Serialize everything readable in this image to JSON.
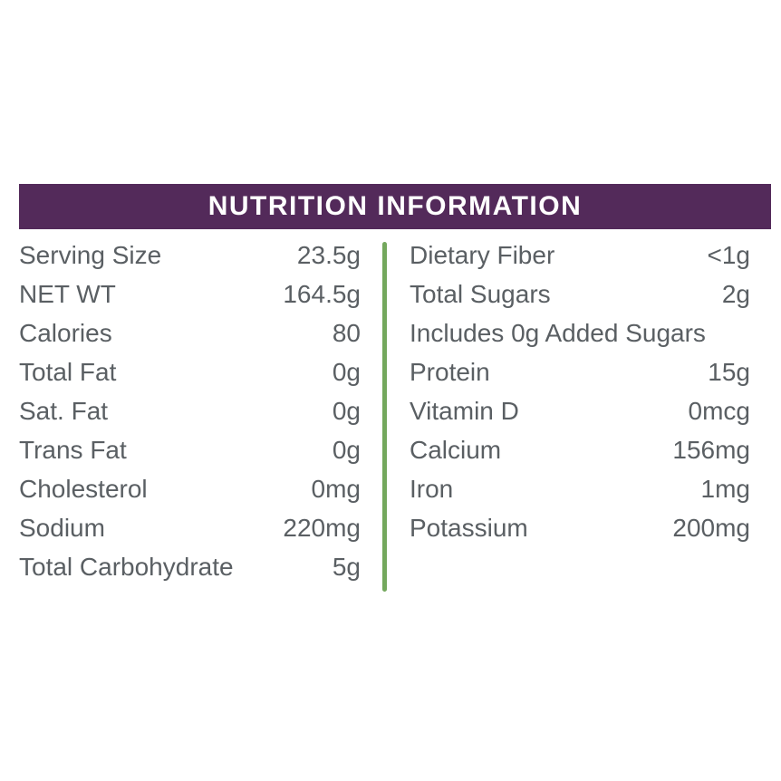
{
  "header": {
    "title": "NUTRITION INFORMATION"
  },
  "colors": {
    "header_bg": "#532a5a",
    "header_text": "#ffffff",
    "divider_green": "#74a85d",
    "body_text": "#5a5f63",
    "background": "#ffffff"
  },
  "nutrition": {
    "left": [
      {
        "label": "Serving Size",
        "value": "23.5g"
      },
      {
        "label": "NET WT",
        "value": "164.5g"
      },
      {
        "label": "Calories",
        "value": "80"
      },
      {
        "label": "Total Fat",
        "value": "0g"
      },
      {
        "label": "Sat. Fat",
        "value": "0g"
      },
      {
        "label": "Trans Fat",
        "value": "0g"
      },
      {
        "label": "Cholesterol",
        "value": "0mg"
      },
      {
        "label": "Sodium",
        "value": "220mg"
      },
      {
        "label": "Total Carbohydrate",
        "value": "5g"
      }
    ],
    "right": [
      {
        "label": "Dietary Fiber",
        "value": "<1g"
      },
      {
        "label": "Total Sugars",
        "value": "2g"
      },
      {
        "label": "Includes 0g Added Sugars",
        "value": ""
      },
      {
        "label": "Protein",
        "value": "15g"
      },
      {
        "label": "Vitamin D",
        "value": "0mcg"
      },
      {
        "label": "Calcium",
        "value": "156mg"
      },
      {
        "label": "Iron",
        "value": "1mg"
      },
      {
        "label": "Potassium",
        "value": "200mg"
      }
    ]
  }
}
